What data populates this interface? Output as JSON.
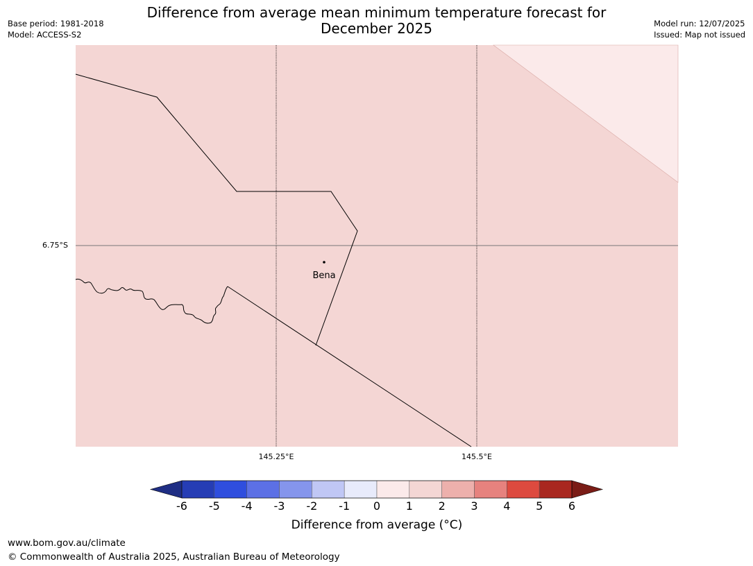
{
  "header": {
    "title_line1": "Difference from average mean minimum temperature forecast for",
    "title_line2": "December 2025",
    "base_period": "Base period: 1981-2018",
    "model": "Model: ACCESS-S2",
    "model_run": "Model run: 12/07/2025",
    "issued": "Issued: Map not issued"
  },
  "map": {
    "latitude_labels": [
      "6.75°S"
    ],
    "longitude_labels": [
      "145.25°E",
      "145.5°E"
    ],
    "places": [
      {
        "name": "Bena",
        "icon": "location-dot-icon"
      }
    ],
    "fill_colors": {
      "main": "#f4d6d4",
      "corner": "#fbeaea",
      "grid": "#777777"
    }
  },
  "colorbar": {
    "title": "Difference from average (°C)",
    "tick_labels": [
      "-6",
      "-5",
      "-4",
      "-3",
      "-2",
      "-1",
      "0",
      "1",
      "2",
      "3",
      "4",
      "5",
      "6"
    ],
    "colors": [
      "#1f2e84",
      "#263db5",
      "#2f4ede",
      "#5c70e5",
      "#8595ec",
      "#c0c7f5",
      "#e8ebfb",
      "#fbeaea",
      "#f4d6d4",
      "#edb0ac",
      "#e6827e",
      "#dd4a3f",
      "#a9271f",
      "#7a1c16"
    ]
  },
  "footer": {
    "url": "www.bom.gov.au/climate",
    "copyright": "© Commonwealth of Australia 2025, Australian Bureau of Meteorology"
  }
}
